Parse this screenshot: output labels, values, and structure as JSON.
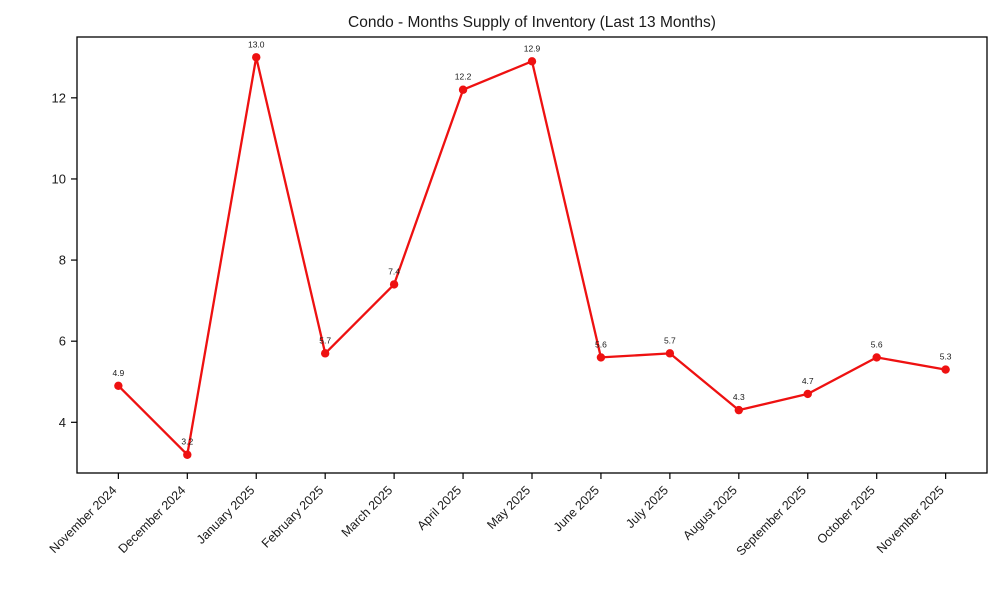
{
  "chart_data": {
    "type": "line",
    "title": "Condo - Months Supply of Inventory (Last 13 Months)",
    "categories": [
      "November 2024",
      "December 2024",
      "January 2025",
      "February 2025",
      "March 2025",
      "April 2025",
      "May 2025",
      "June 2025",
      "July 2025",
      "August 2025",
      "September 2025",
      "October 2025",
      "November 2025"
    ],
    "values": [
      4.9,
      3.2,
      13.0,
      5.7,
      7.4,
      12.2,
      12.9,
      5.6,
      5.7,
      4.3,
      4.7,
      5.6,
      5.3
    ],
    "point_labels": [
      "4.9",
      "3.2",
      "13.0",
      "5.7",
      "7.4",
      "12.2",
      "12.9",
      "5.6",
      "5.7",
      "4.3",
      "4.7",
      "5.6",
      "5.3"
    ],
    "xlabel": "",
    "ylabel": "",
    "yticks": [
      4,
      6,
      8,
      10,
      12
    ],
    "ylim": [
      2.75,
      13.5
    ],
    "grid": false,
    "legend": "none",
    "line_color": "#ee1111",
    "marker_color": "#ee1111",
    "text_color": "#1a1a1a",
    "spine_color": "#000000",
    "background_color": "#ffffff"
  }
}
